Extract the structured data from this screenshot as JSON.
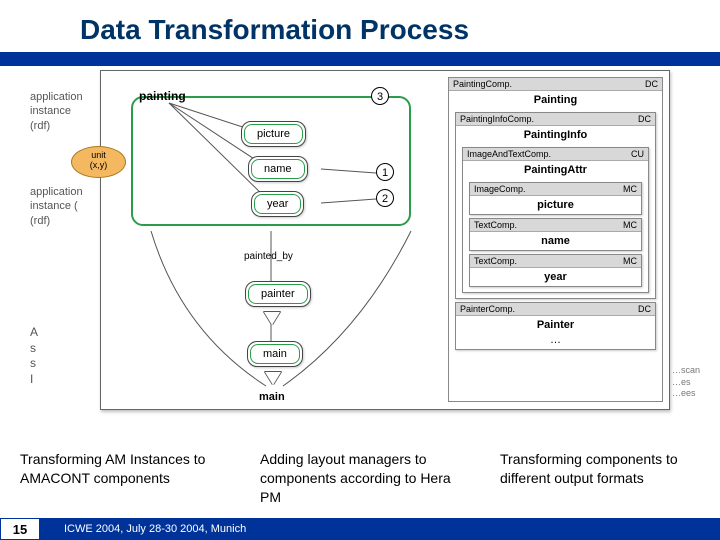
{
  "title": "Data Transformation Process",
  "colors": {
    "title": "#003366",
    "bar": "#003399",
    "green": "#2a9d4a",
    "orange": "#f4b860",
    "grey": "#d8d8d8"
  },
  "background_fragments": {
    "left1": "application\ninstance\n(rdf)",
    "left2": "application\ninstance (\n(rdf)",
    "A": "A\ns\ns\nI",
    "right_bot": "…scan\n…es\n…ees"
  },
  "left_diagram": {
    "root_label": "painting",
    "pills": {
      "picture": "picture",
      "name": "name",
      "year": "year",
      "painter": "painter",
      "main": "main"
    },
    "orange": "unit\n(x,y)",
    "edge_label": "painted_by",
    "bottom_label": "main",
    "circle_labels": {
      "c1": "1",
      "c2": "2",
      "c3": "3"
    }
  },
  "right_panel": {
    "outer": {
      "left": "PaintingComp.",
      "right": "DC",
      "title": "Painting"
    },
    "info": {
      "left": "PaintingInfoComp.",
      "right": "DC",
      "title": "PaintingInfo"
    },
    "attr": {
      "left": "ImageAndTextComp.",
      "right": "CU",
      "title": "PaintingAttr"
    },
    "img": {
      "left": "ImageComp.",
      "right": "MC",
      "title": "picture"
    },
    "t1": {
      "left": "TextComp.",
      "right": "MC",
      "title": "name"
    },
    "t2": {
      "left": "TextComp.",
      "right": "MC",
      "title": "year"
    },
    "painter": {
      "left": "PainterComp.",
      "right": "DC",
      "title": "Painter",
      "ellipsis": "…"
    }
  },
  "captions": {
    "c1": "Transforming AM Instances to AMACONT components",
    "c2": "Adding layout managers to components according to Hera PM",
    "c3": "Transforming components to different output formats"
  },
  "footer": {
    "page": "15",
    "venue": "ICWE 2004, July 28-30 2004, Munich"
  }
}
